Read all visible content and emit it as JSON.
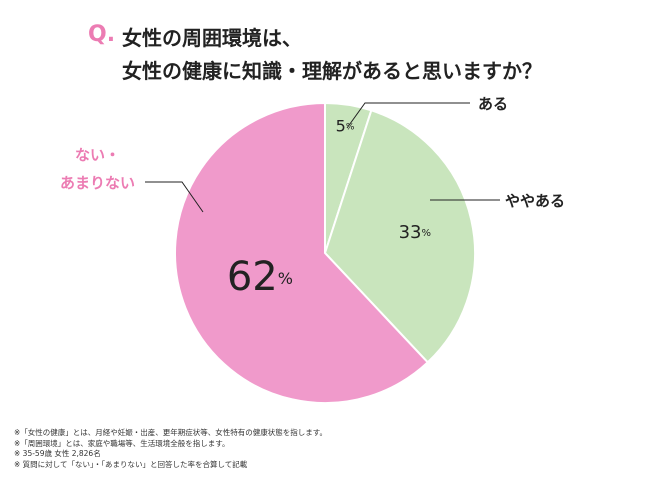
{
  "question": {
    "mark": "Q.",
    "line1": "女性の周囲環境は、",
    "line2": "女性の健康に知識・理解があると思いますか？"
  },
  "chart_data": {
    "type": "pie",
    "title": "",
    "unit": "%",
    "slices": [
      {
        "label": "ある",
        "value": 5,
        "color": "#c9e5bd"
      },
      {
        "label": "ややある",
        "value": 33,
        "color": "#c9e5bd"
      },
      {
        "label": "ない・あまりない",
        "label_lines": [
          "ない・",
          "あまりない"
        ],
        "value": 62,
        "color": "#f09acb"
      }
    ],
    "label_color_highlight": "#ec7cb3"
  },
  "notes": [
    "※「女性の健康」とは、月経や妊娠・出産、更年期症状等、女性特有の健康状態を指します。",
    "※「周囲環境」とは、家庭や職場等、生活環境全般を指します。",
    "※ 35-59歳 女性 2,826名",
    "※ 質問に対して「ない」・「あまりない」と回答した率を合算して記載"
  ]
}
